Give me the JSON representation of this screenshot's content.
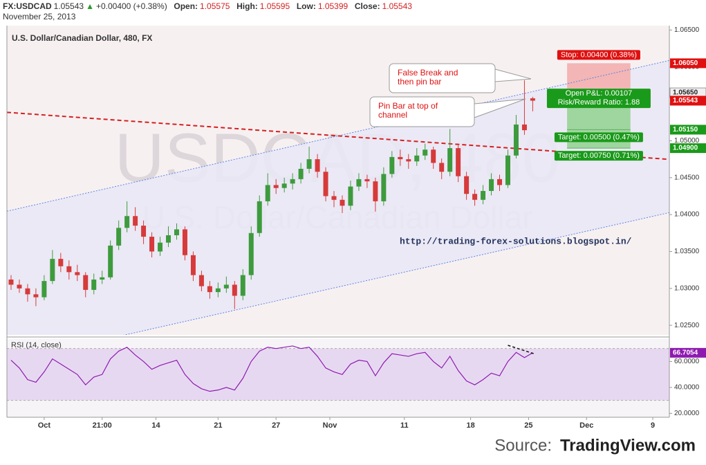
{
  "chart_data": {
    "type": "candlestick",
    "header": {
      "symbol": "FX:USDCAD",
      "last": "1.05543",
      "arrow": "▲",
      "change": "+0.00400 (+0.38%)",
      "open_label": "Open:",
      "open": "1.05575",
      "high_label": "High:",
      "high": "1.05595",
      "low_label": "Low:",
      "low": "1.05399",
      "close_label": "Close:",
      "close": "1.05543"
    },
    "date": "November 25, 2013",
    "pane_title": "U.S. Dollar/Canadian Dollar, 480, FX",
    "watermark": [
      "USDCAD, 480",
      "U.S. Dollar/Canadian Dollar"
    ],
    "url": "http://trading-forex-solutions.blogspot.in/",
    "up_color": "#3d9b3d",
    "down_color": "#d63a3a",
    "xlim": [
      0,
      160
    ],
    "xticks": [
      {
        "value": 9,
        "label": "Oct"
      },
      {
        "value": 23,
        "label": "21:00"
      },
      {
        "value": 36,
        "label": "14"
      },
      {
        "value": 51,
        "label": "21"
      },
      {
        "value": 65,
        "label": "27"
      },
      {
        "value": 78,
        "label": "Nov"
      },
      {
        "value": 96,
        "label": "11"
      },
      {
        "value": 112,
        "label": "18"
      },
      {
        "value": 126,
        "label": "25"
      },
      {
        "value": 140,
        "label": "Dec"
      },
      {
        "value": 156,
        "label": "9"
      }
    ],
    "ylim": [
      1.0237,
      1.0656
    ],
    "yticks": [
      {
        "value": 1.025,
        "label": "1.02500"
      },
      {
        "value": 1.03,
        "label": "1.03000"
      },
      {
        "value": 1.035,
        "label": "1.03500"
      },
      {
        "value": 1.04,
        "label": "1.04000"
      },
      {
        "value": 1.045,
        "label": "1.04500"
      },
      {
        "value": 1.05,
        "label": "1.05000"
      },
      {
        "value": 1.055,
        "label": "1.05500"
      },
      {
        "value": 1.06,
        "label": "1.06000"
      },
      {
        "value": 1.065,
        "label": "1.06500"
      }
    ],
    "x": [
      1,
      3,
      5,
      7,
      9,
      11,
      13,
      15,
      17,
      19,
      21,
      23,
      25,
      27,
      29,
      31,
      33,
      35,
      37,
      39,
      41,
      43,
      45,
      47,
      49,
      51,
      53,
      55,
      57,
      59,
      61,
      63,
      65,
      67,
      69,
      71,
      73,
      75,
      77,
      79,
      81,
      83,
      85,
      87,
      89,
      91,
      93,
      95,
      97,
      99,
      101,
      103,
      105,
      107,
      109,
      111,
      113,
      115,
      117,
      119,
      121,
      123,
      125,
      127
    ],
    "candles": [
      [
        1.0312,
        1.0318,
        1.0298,
        1.0305
      ],
      [
        1.0305,
        1.0312,
        1.0294,
        1.03
      ],
      [
        1.03,
        1.0306,
        1.0282,
        1.0292
      ],
      [
        1.0292,
        1.03,
        1.0276,
        1.0288
      ],
      [
        1.0288,
        1.0318,
        1.0284,
        1.031
      ],
      [
        1.031,
        1.0352,
        1.0306,
        1.034
      ],
      [
        1.034,
        1.0348,
        1.0322,
        1.033
      ],
      [
        1.033,
        1.0338,
        1.0312,
        1.0322
      ],
      [
        1.0322,
        1.0332,
        1.031,
        1.0318
      ],
      [
        1.0318,
        1.0322,
        1.0288,
        1.0298
      ],
      [
        1.0298,
        1.032,
        1.0292,
        1.0312
      ],
      [
        1.0312,
        1.0324,
        1.0306,
        1.0315
      ],
      [
        1.0315,
        1.0365,
        1.0312,
        1.0358
      ],
      [
        1.0358,
        1.0392,
        1.0352,
        1.0382
      ],
      [
        1.0382,
        1.0418,
        1.0376,
        1.0398
      ],
      [
        1.0398,
        1.041,
        1.0378,
        1.0385
      ],
      [
        1.0385,
        1.0392,
        1.036,
        1.037
      ],
      [
        1.037,
        1.0376,
        1.0342,
        1.035
      ],
      [
        1.035,
        1.037,
        1.0344,
        1.0362
      ],
      [
        1.0362,
        1.0384,
        1.0356,
        1.0372
      ],
      [
        1.0372,
        1.0388,
        1.0366,
        1.038
      ],
      [
        1.038,
        1.0384,
        1.0338,
        1.0345
      ],
      [
        1.0345,
        1.035,
        1.031,
        1.0318
      ],
      [
        1.0318,
        1.0324,
        1.0296,
        1.0303
      ],
      [
        1.0303,
        1.031,
        1.0286,
        1.0295
      ],
      [
        1.0295,
        1.0308,
        1.0288,
        1.03
      ],
      [
        1.03,
        1.0316,
        1.0294,
        1.0305
      ],
      [
        1.0305,
        1.031,
        1.0272,
        1.029
      ],
      [
        1.029,
        1.0326,
        1.0284,
        1.0318
      ],
      [
        1.0318,
        1.0384,
        1.0312,
        1.0375
      ],
      [
        1.0375,
        1.0426,
        1.037,
        1.0418
      ],
      [
        1.0418,
        1.0456,
        1.0412,
        1.044
      ],
      [
        1.044,
        1.0448,
        1.0428,
        1.0436
      ],
      [
        1.0436,
        1.045,
        1.043,
        1.0442
      ],
      [
        1.0442,
        1.0456,
        1.0434,
        1.0448
      ],
      [
        1.0448,
        1.047,
        1.0442,
        1.0462
      ],
      [
        1.0462,
        1.0492,
        1.0456,
        1.0475
      ],
      [
        1.0475,
        1.0482,
        1.045,
        1.0458
      ],
      [
        1.0458,
        1.0464,
        1.0418,
        1.0425
      ],
      [
        1.0425,
        1.0432,
        1.041,
        1.042
      ],
      [
        1.042,
        1.0426,
        1.0402,
        1.0412
      ],
      [
        1.0412,
        1.0446,
        1.0406,
        1.0438
      ],
      [
        1.0438,
        1.0456,
        1.0432,
        1.0448
      ],
      [
        1.0448,
        1.0454,
        1.0436,
        1.0445
      ],
      [
        1.0445,
        1.045,
        1.0404,
        1.0418
      ],
      [
        1.0418,
        1.0464,
        1.0412,
        1.0455
      ],
      [
        1.0455,
        1.0486,
        1.045,
        1.0478
      ],
      [
        1.0478,
        1.0488,
        1.0466,
        1.0475
      ],
      [
        1.0475,
        1.0482,
        1.0462,
        1.0472
      ],
      [
        1.0472,
        1.049,
        1.0466,
        1.048
      ],
      [
        1.048,
        1.0496,
        1.0474,
        1.0488
      ],
      [
        1.0488,
        1.0492,
        1.0462,
        1.047
      ],
      [
        1.047,
        1.0476,
        1.0448,
        1.0458
      ],
      [
        1.0458,
        1.0516,
        1.0452,
        1.049
      ],
      [
        1.049,
        1.0494,
        1.0444,
        1.0452
      ],
      [
        1.0452,
        1.0458,
        1.042,
        1.0428
      ],
      [
        1.0428,
        1.0434,
        1.0412,
        1.042
      ],
      [
        1.042,
        1.044,
        1.0414,
        1.0432
      ],
      [
        1.0432,
        1.0456,
        1.0426,
        1.0448
      ],
      [
        1.0448,
        1.0454,
        1.0432,
        1.044
      ],
      [
        1.044,
        1.0488,
        1.0436,
        1.048
      ],
      [
        1.048,
        1.0535,
        1.0476,
        1.0522
      ],
      [
        1.0522,
        1.0582,
        1.0508,
        1.05143
      ],
      [
        1.05575,
        1.05595,
        1.05399,
        1.05543
      ]
    ],
    "trendlines": [
      {
        "x": [
          0,
          160
        ],
        "y": [
          1.04046,
          1.06088
        ],
        "color": "#5a86e6",
        "dash": "2,2",
        "width": 1
      },
      {
        "x": [
          0,
          160
        ],
        "y": [
          1.02011,
          1.04027
        ],
        "color": "#5a86e6",
        "dash": "2,2",
        "width": 1
      },
      {
        "x": [
          0,
          160
        ],
        "y": [
          1.05385,
          1.04748
        ],
        "color": "#d42020",
        "dash": "6,4",
        "width": 2
      }
    ],
    "position": {
      "x": [
        135.3,
        150.6
      ],
      "entry": 1.0565,
      "stop": 1.0605,
      "targets": [
        1.0515,
        1.049
      ],
      "stop_label": "Stop: 0.00400 (0.38%)",
      "pnl_label": "Open P&L: 0.00107",
      "rr_label": "Risk/Reward Ratio: 1.88",
      "target_labels": [
        "Target: 0.00500 (0.47%)",
        "Target: 0.00750 (0.71%)"
      ]
    },
    "price_labels": [
      {
        "value": 1.0605,
        "label": "1.06050",
        "color": "#e01010"
      },
      {
        "value": 1.0565,
        "label": "1.05650",
        "color": "#f0f0f0"
      },
      {
        "value": 1.05543,
        "label": "1.05543",
        "color": "#e01010"
      },
      {
        "value": 1.0515,
        "label": "1.05150",
        "color": "#1a9a1a"
      },
      {
        "value": 1.049,
        "label": "1.04900",
        "color": "#1a9a1a"
      }
    ],
    "callouts": [
      {
        "lines": [
          "False Break and",
          "then pin bar"
        ]
      },
      {
        "lines": [
          "Pin Bar at top of",
          "channel"
        ]
      }
    ],
    "rsi": {
      "title": "RSI (14, close)",
      "color": "#8e1bb0",
      "band": [
        30,
        70
      ],
      "ylim": [
        17,
        77.3
      ],
      "yticks": [
        {
          "value": 20,
          "label": "20.0000"
        },
        {
          "value": 40,
          "label": "40.0000"
        },
        {
          "value": 60,
          "label": "60.0000"
        }
      ],
      "values": [
        61,
        55,
        46,
        44,
        52,
        62,
        58,
        54,
        50,
        42,
        48,
        50,
        62,
        68,
        71,
        65,
        60,
        54,
        57,
        59,
        61,
        50,
        43,
        39,
        37,
        38,
        40,
        38,
        47,
        60,
        68,
        71,
        70,
        71,
        72,
        70,
        71,
        64,
        55,
        52,
        50,
        58,
        61,
        60,
        49,
        59,
        66,
        65,
        64,
        66,
        67,
        60,
        55,
        64,
        53,
        45,
        42,
        46,
        51,
        49,
        60,
        67,
        63,
        66.7054
      ],
      "last_label": "66.7054",
      "divergence": {
        "x": [
          121,
          127.3
        ],
        "y": [
          72.5,
          66
        ]
      }
    },
    "source": [
      "Source:",
      "TradingView.com"
    ]
  }
}
